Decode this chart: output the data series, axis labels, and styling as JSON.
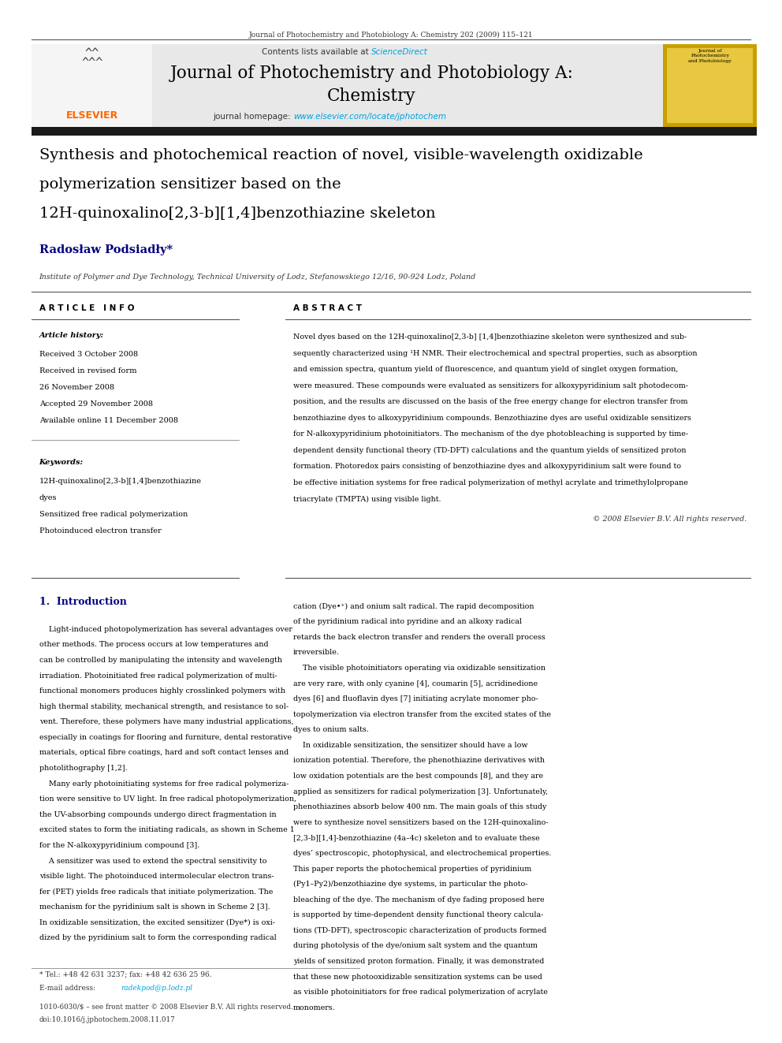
{
  "bg_color": "#ffffff",
  "page_width": 9.92,
  "page_height": 13.23,
  "dpi": 100,
  "header_journal_ref": "Journal of Photochemistry and Photobiology A: Chemistry 202 (2009) 115–121",
  "elsevier_logo_text": "ELSEVIER",
  "elsevier_logo_color": "#ff6600",
  "contents_text": "Contents lists available at ",
  "sciencedirect_text": "ScienceDirect",
  "sciencedirect_color": "#00a0e0",
  "journal_title_line1": "Journal of Photochemistry and Photobiology A:",
  "journal_title_line2": "Chemistry",
  "homepage_label": "journal homepage: ",
  "homepage_url": "www.elsevier.com/locate/jphotochem",
  "homepage_url_color": "#00a0e0",
  "separator_bar_color": "#1a1a1a",
  "article_title_line1": "Synthesis and photochemical reaction of novel, visible-wavelength oxidizable",
  "article_title_line2": "polymerization sensitizer based on the",
  "article_title_line3": "12H-quinoxalino[2,3-b][1,4]benzothiazine skeleton",
  "author_name": "Radosław Podsiadły",
  "author_asterisk": "*",
  "author_color": "#000080",
  "affiliation": "Institute of Polymer and Dye Technology, Technical University of Lodz, Stefanowskiego 12/16, 90-924 Lodz, Poland",
  "article_info_header": "A R T I C L E   I N F O",
  "article_history_label": "Article history:",
  "received_1": "Received 3 October 2008",
  "received_revised": "Received in revised form",
  "received_revised_date": "26 November 2008",
  "accepted": "Accepted 29 November 2008",
  "available": "Available online 11 December 2008",
  "keywords_label": "Keywords:",
  "keyword1": "12H-quinoxalino[2,3-b][1,4]benzothiazine",
  "keyword2": "dyes",
  "keyword3": "Sensitized free radical polymerization",
  "keyword4": "Photoinduced electron transfer",
  "abstract_header": "A B S T R A C T",
  "abstract_lines": [
    "Novel dyes based on the 12H-quinoxalino[2,3-b] [1,4]benzothiazine skeleton were synthesized and sub-",
    "sequently characterized using ¹H NMR. Their electrochemical and spectral properties, such as absorption",
    "and emission spectra, quantum yield of fluorescence, and quantum yield of singlet oxygen formation,",
    "were measured. These compounds were evaluated as sensitizers for alkoxypyridinium salt photodecom-",
    "position, and the results are discussed on the basis of the free energy change for electron transfer from",
    "benzothiazine dyes to alkoxypyridinium compounds. Benzothiazine dyes are useful oxidizable sensitizers",
    "for N-alkoxypyridinium photoinitiators. The mechanism of the dye photobleaching is supported by time-",
    "dependent density functional theory (TD-DFT) calculations and the quantum yields of sensitized proton",
    "formation. Photoredox pairs consisting of benzothiazine dyes and alkoxypyridinium salt were found to",
    "be effective initiation systems for free radical polymerization of methyl acrylate and trimethylolpropane",
    "triacrylate (TMPTA) using visible light."
  ],
  "copyright_text": "© 2008 Elsevier B.V. All rights reserved.",
  "intro_section_num": "1.",
  "intro_section_title": "Introduction",
  "intro_section_color": "#000080",
  "intro_left_lines": [
    "    Light-induced photopolymerization has several advantages over",
    "other methods. The process occurs at low temperatures and",
    "can be controlled by manipulating the intensity and wavelength",
    "irradiation. Photoinitiated free radical polymerization of multi-",
    "functional monomers produces highly crosslinked polymers with",
    "high thermal stability, mechanical strength, and resistance to sol-",
    "vent. Therefore, these polymers have many industrial applications,",
    "especially in coatings for flooring and furniture, dental restorative",
    "materials, optical fibre coatings, hard and soft contact lenses and",
    "photolithography [1,2].",
    "    Many early photoinitiating systems for free radical polymeriza-",
    "tion were sensitive to UV light. In free radical photopolymerization,",
    "the UV-absorbing compounds undergo direct fragmentation in",
    "excited states to form the initiating radicals, as shown in Scheme 1",
    "for the N-alkoxypyridinium compound [3].",
    "    A sensitizer was used to extend the spectral sensitivity to",
    "visible light. The photoinduced intermolecular electron trans-",
    "fer (PET) yields free radicals that initiate polymerization. The",
    "mechanism for the pyridinium salt is shown in Scheme 2 [3].",
    "In oxidizable sensitization, the excited sensitizer (Dye*) is oxi-",
    "dized by the pyridinium salt to form the corresponding radical"
  ],
  "intro_right_lines": [
    "cation (Dye•⁺) and onium salt radical. The rapid decomposition",
    "of the pyridinium radical into pyridine and an alkoxy radical",
    "retards the back electron transfer and renders the overall process",
    "irreversible.",
    "    The visible photoinitiators operating via oxidizable sensitization",
    "are very rare, with only cyanine [4], coumarin [5], acridinedione",
    "dyes [6] and fluoflavin dyes [7] initiating acrylate monomer pho-",
    "topolymerization via electron transfer from the excited states of the",
    "dyes to onium salts.",
    "    In oxidizable sensitization, the sensitizer should have a low",
    "ionization potential. Therefore, the phenothiazine derivatives with",
    "low oxidation potentials are the best compounds [8], and they are",
    "applied as sensitizers for radical polymerization [3]. Unfortunately,",
    "phenothiazines absorb below 400 nm. The main goals of this study",
    "were to synthesize novel sensitizers based on the 12H-quinoxalino-",
    "[2,3-b][1,4]-benzothiazine (4a–4c) skeleton and to evaluate these",
    "dyes’ spectroscopic, photophysical, and electrochemical properties.",
    "This paper reports the photochemical properties of pyridinium",
    "(Py1–Py2)/benzothiazine dye systems, in particular the photo-",
    "bleaching of the dye. The mechanism of dye fading proposed here",
    "is supported by time-dependent density functional theory calcula-",
    "tions (TD-DFT), spectroscopic characterization of products formed",
    "during photolysis of the dye/onium salt system and the quantum",
    "yields of sensitized proton formation. Finally, it was demonstrated",
    "that these new photooxidizable sensitization systems can be used",
    "as visible photoinitiators for free radical polymerization of acrylate",
    "monomers."
  ],
  "footnote_tel": "* Tel.: +48 42 631 3237; fax: +48 42 636 25 96.",
  "footnote_email_label": "E-mail address: ",
  "footnote_email": "radekpod@p.lodz.pl",
  "footer_issn": "1010-6030/$ – see front matter © 2008 Elsevier B.V. All rights reserved.",
  "footer_doi": "doi:10.1016/j.jphotochem.2008.11.017"
}
